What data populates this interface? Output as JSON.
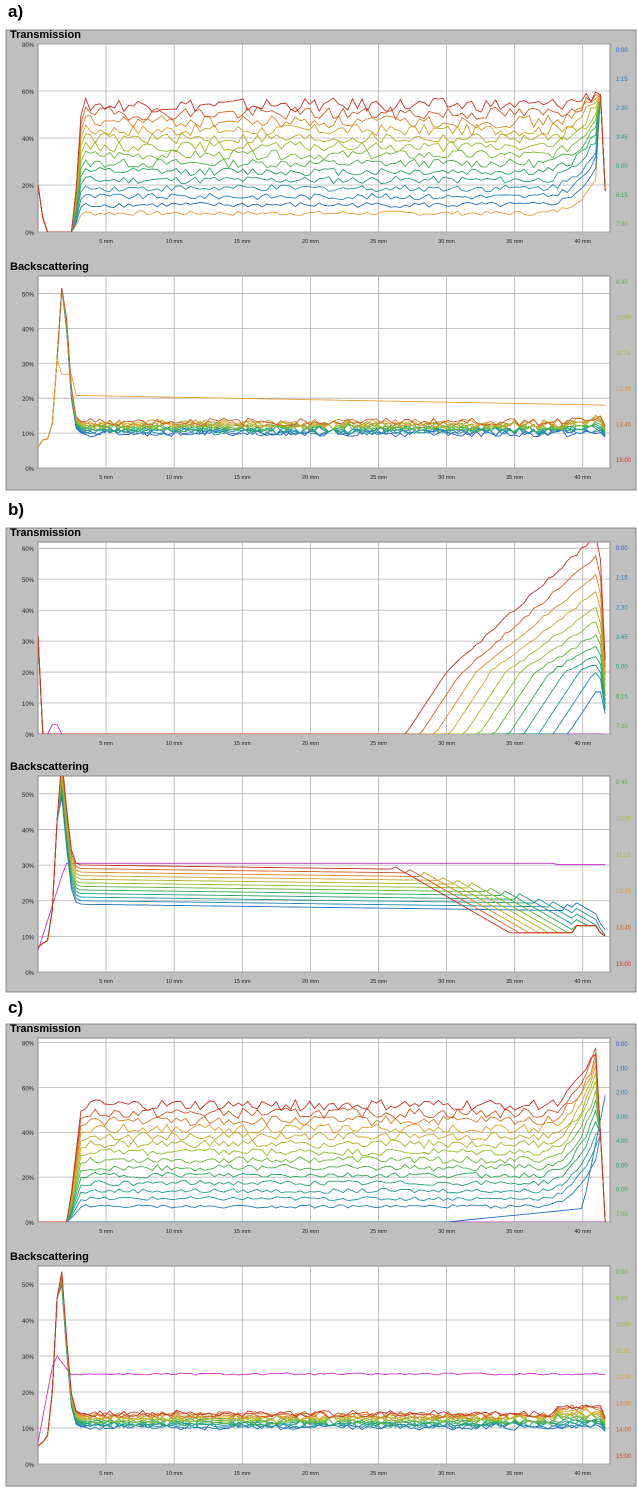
{
  "figure_labels": [
    "a)",
    "b)",
    "c)"
  ],
  "colors": {
    "plot_bg": "#ffffff",
    "frame_bg": "#bfbfbf",
    "grid": "#b0b0b0",
    "accent_magenta": "#cc33cc",
    "accent_orange": "#e8a040"
  },
  "chart_data": [
    {
      "panel": "a)",
      "type": "line",
      "title": "Transmission",
      "x_ticks": [
        "5 mm",
        "10 mm",
        "15 mm",
        "20 mm",
        "25 mm",
        "30 mm",
        "35 mm",
        "40 mm"
      ],
      "y_ticks": [
        "0%",
        "20%",
        "40%",
        "60%",
        "80%"
      ],
      "xlim": [
        0,
        42
      ],
      "ylim": [
        0,
        80
      ],
      "legend": [
        "0:00",
        "1:15",
        "2:30",
        "3:45",
        "5:00",
        "6:15",
        "7:30"
      ],
      "series_count": 14
    },
    {
      "panel": "a)",
      "type": "line",
      "title": "Backscattering",
      "x_ticks": [
        "5 mm",
        "10 mm",
        "15 mm",
        "20 mm",
        "25 mm",
        "30 mm",
        "35 mm",
        "40 mm"
      ],
      "y_ticks": [
        "0%",
        "10%",
        "20%",
        "30%",
        "40%",
        "50%"
      ],
      "xlim": [
        0,
        42
      ],
      "ylim": [
        0,
        55
      ],
      "legend": [
        "8:45",
        "10:00",
        "11:15",
        "12:30",
        "13:45",
        "15:00"
      ],
      "series_count": 14
    },
    {
      "panel": "b)",
      "type": "line",
      "title": "Transmission",
      "x_ticks": [
        "5 mm",
        "10 mm",
        "15 mm",
        "20 mm",
        "25 mm",
        "30 mm",
        "35 mm",
        "40 mm"
      ],
      "y_ticks": [
        "0%",
        "10%",
        "20%",
        "30%",
        "40%",
        "50%",
        "60%"
      ],
      "xlim": [
        0,
        42
      ],
      "ylim": [
        0,
        62
      ],
      "legend": [
        "0:00",
        "1:15",
        "2:30",
        "3:45",
        "5:00",
        "6:15",
        "7:30"
      ],
      "series_count": 13
    },
    {
      "panel": "b)",
      "type": "line",
      "title": "Backscattering",
      "x_ticks": [
        "5 mm",
        "10 mm",
        "15 mm",
        "20 mm",
        "25 mm",
        "30 mm",
        "35 mm",
        "40 mm"
      ],
      "y_ticks": [
        "0%",
        "10%",
        "20%",
        "30%",
        "40%",
        "50%"
      ],
      "xlim": [
        0,
        42
      ],
      "ylim": [
        0,
        55
      ],
      "legend": [
        "8:45",
        "10:00",
        "11:15",
        "12:30",
        "13:45",
        "15:00"
      ],
      "series_count": 13
    },
    {
      "panel": "c)",
      "type": "line",
      "title": "Transmission",
      "x_ticks": [
        "5 mm",
        "10 mm",
        "15 mm",
        "20 mm",
        "25 mm",
        "30 mm",
        "35 mm",
        "40 mm"
      ],
      "y_ticks": [
        "0%",
        "20%",
        "40%",
        "60%",
        "80%"
      ],
      "xlim": [
        0,
        42
      ],
      "ylim": [
        0,
        82
      ],
      "legend": [
        "0:00",
        "1:00",
        "2:00",
        "3:00",
        "4:00",
        "5:00",
        "6:00",
        "7:00"
      ],
      "series_count": 16
    },
    {
      "panel": "c)",
      "type": "line",
      "title": "Backscattering",
      "x_ticks": [
        "5 mm",
        "10 mm",
        "15 mm",
        "20 mm",
        "25 mm",
        "30 mm",
        "35 mm",
        "40 mm"
      ],
      "y_ticks": [
        "0%",
        "10%",
        "20%",
        "30%",
        "40%",
        "50%"
      ],
      "xlim": [
        0,
        42
      ],
      "ylim": [
        0,
        55
      ],
      "legend": [
        "8:00",
        "9:00",
        "10:00",
        "11:00",
        "12:00",
        "13:00",
        "14:00",
        "15:00"
      ],
      "series_count": 16
    }
  ]
}
